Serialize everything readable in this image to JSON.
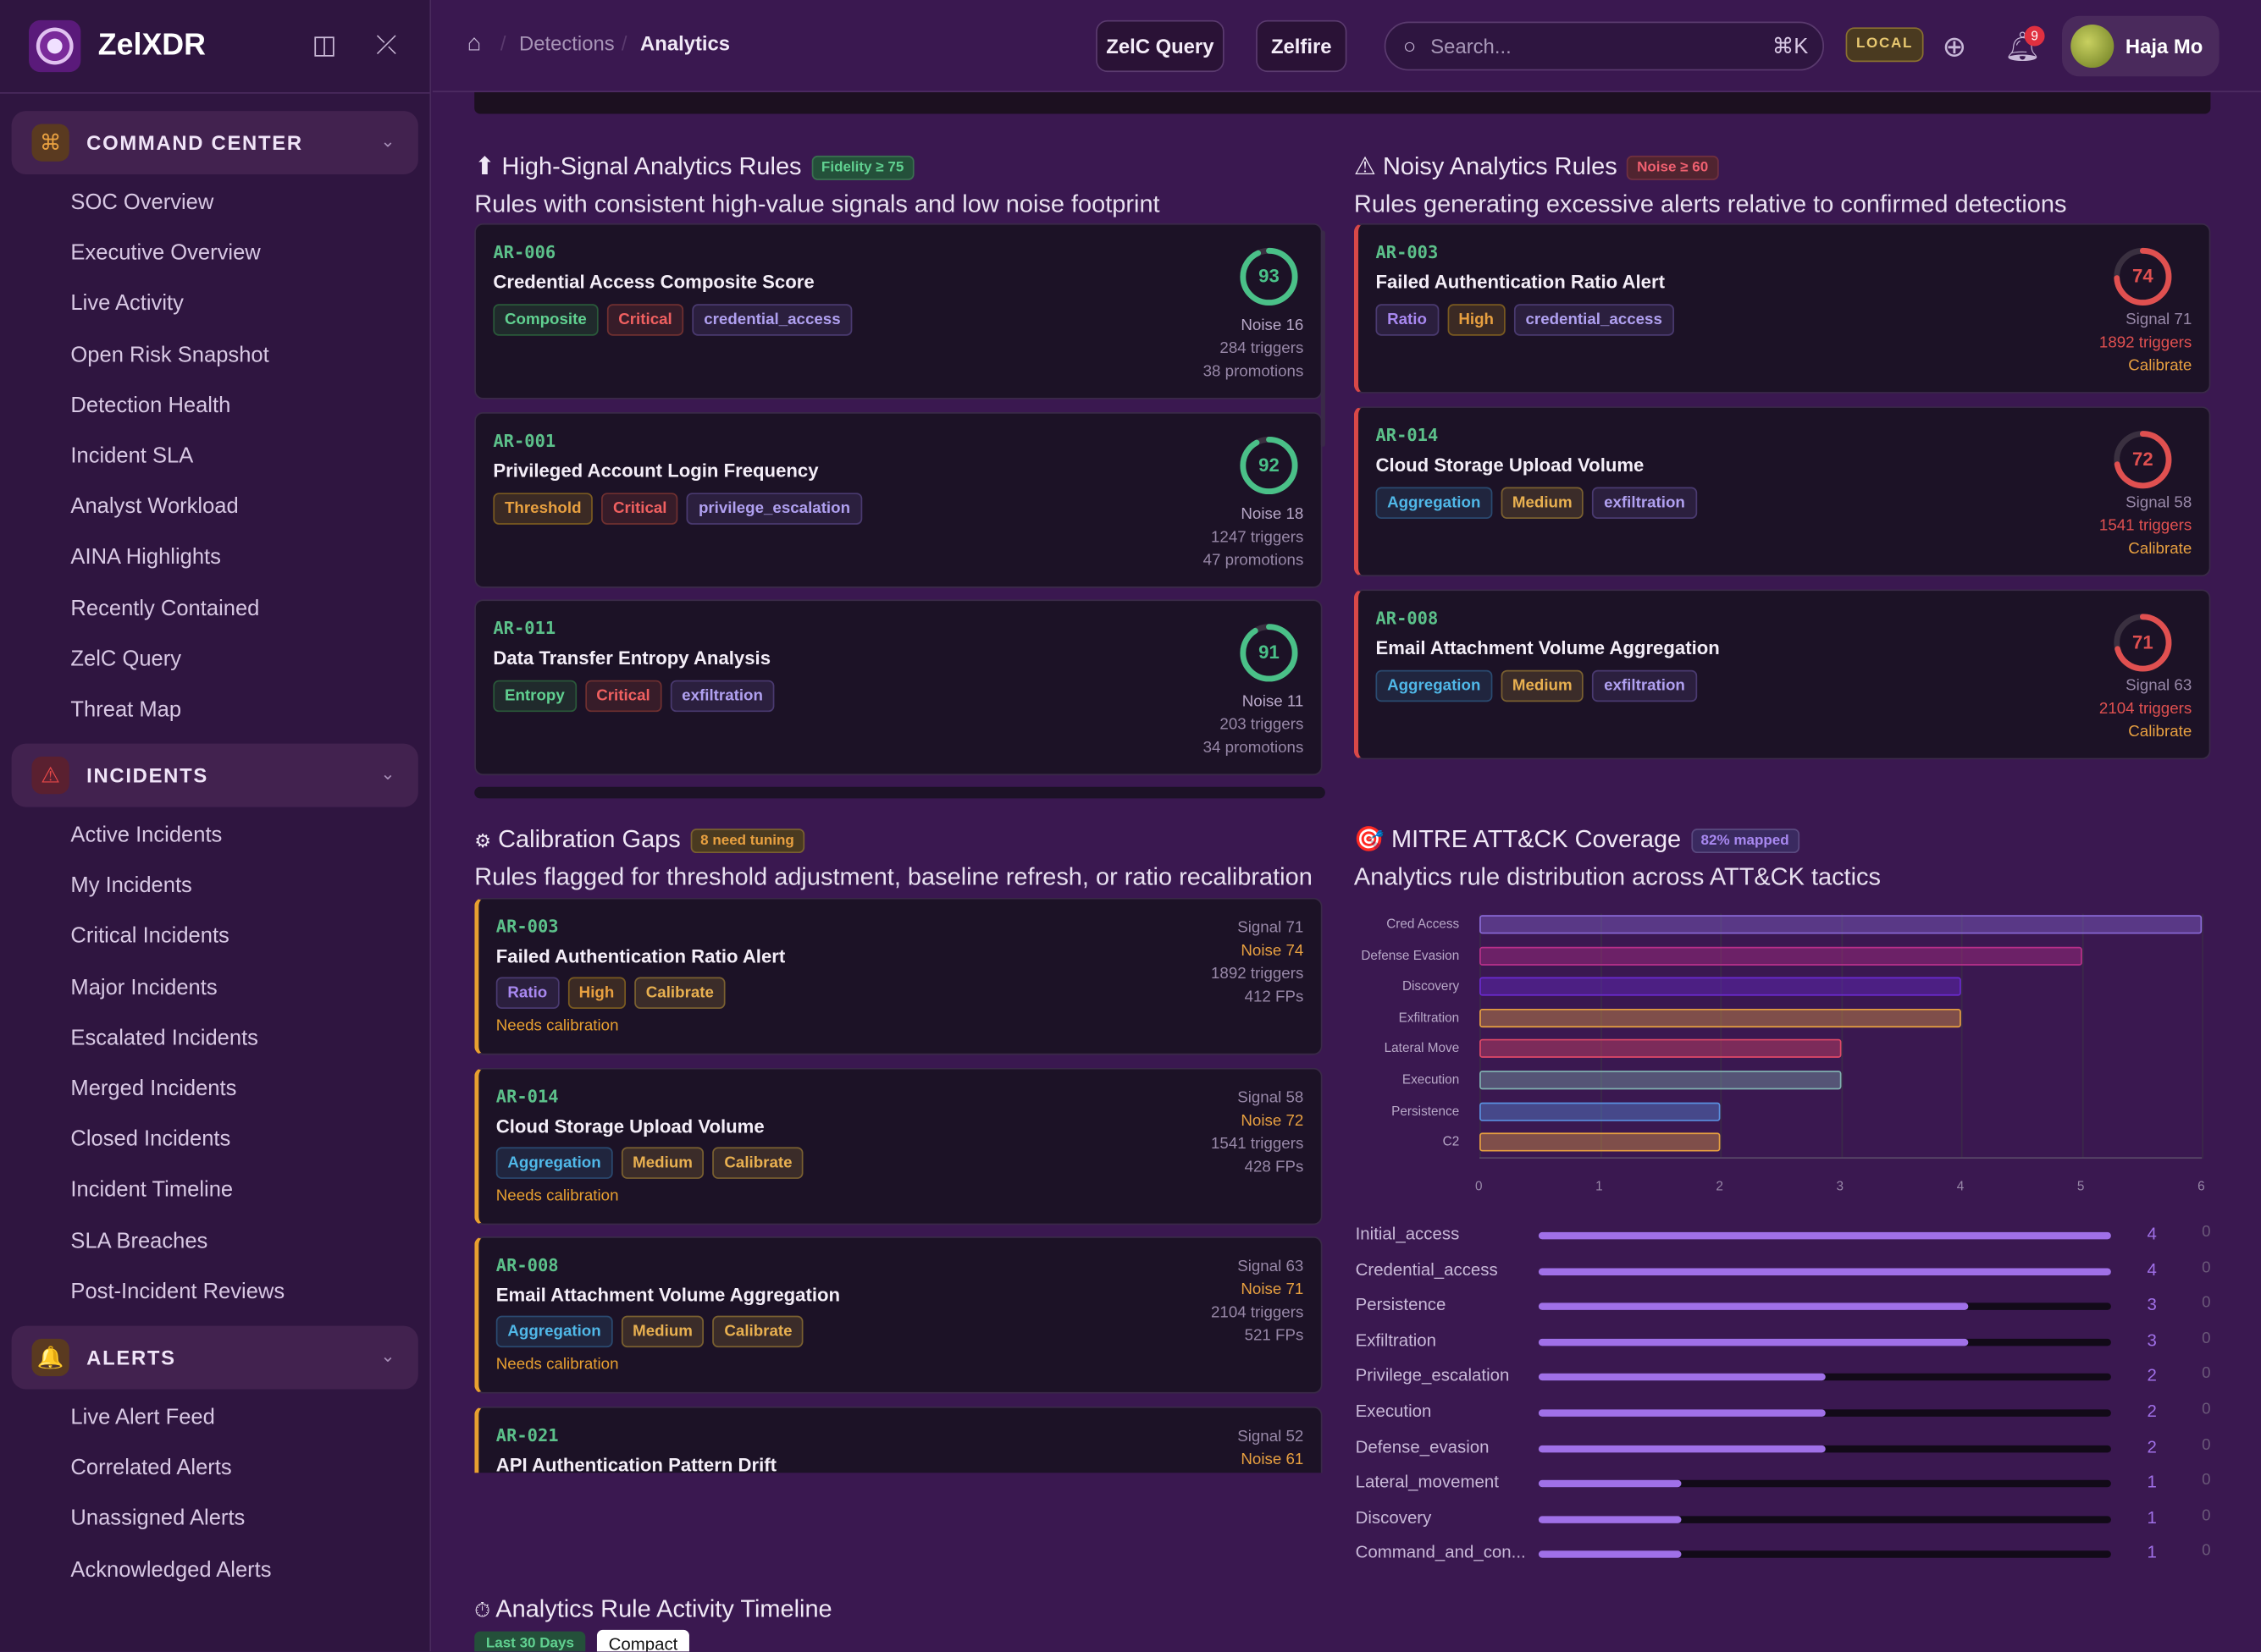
{
  "app": {
    "name": "ZelXDR"
  },
  "sidebar": {
    "command_center": {
      "label": "COMMAND CENTER",
      "items": [
        "SOC Overview",
        "Executive Overview",
        "Live Activity",
        "Open Risk Snapshot",
        "Detection Health",
        "Incident SLA",
        "Analyst Workload",
        "AINA Highlights",
        "Recently Contained",
        "ZelC Query",
        "Threat Map"
      ]
    },
    "incidents": {
      "label": "INCIDENTS",
      "items": [
        "Active Incidents",
        "My Incidents",
        "Critical Incidents",
        "Major Incidents",
        "Escalated Incidents",
        "Merged Incidents",
        "Closed Incidents",
        "Incident Timeline",
        "SLA Breaches",
        "Post-Incident Reviews"
      ]
    },
    "alerts": {
      "label": "ALERTS",
      "items": [
        "Live Alert Feed",
        "Correlated Alerts",
        "Unassigned Alerts",
        "Acknowledged Alerts"
      ]
    }
  },
  "header": {
    "breadcrumb": [
      "Detections",
      "Analytics"
    ],
    "btn_query": "ZelC Query",
    "btn_zelfire": "Zelfire",
    "search_placeholder": "Search...",
    "search_kbd": "⌘K",
    "env": "LOCAL",
    "notif_count": "9",
    "user": "Haja Mo"
  },
  "high_signal": {
    "title": "High-Signal Analytics Rules",
    "badge": "Fidelity ≥ 75",
    "subtitle": "Rules with consistent high-value signals and low noise footprint",
    "rules": [
      {
        "id": "AR-006",
        "name": "Credential Access Composite Score",
        "tags": [
          "Composite",
          "Critical",
          "credential_access"
        ],
        "score": "93",
        "score_frac": 0.93,
        "noise": "Noise 16",
        "triggers": "284 triggers",
        "promotions": "38 promotions"
      },
      {
        "id": "AR-001",
        "name": "Privileged Account Login Frequency",
        "tags": [
          "Threshold",
          "Critical",
          "privilege_escalation"
        ],
        "score": "92",
        "score_frac": 0.92,
        "noise": "Noise 18",
        "triggers": "1247 triggers",
        "promotions": "47 promotions"
      },
      {
        "id": "AR-011",
        "name": "Data Transfer Entropy Analysis",
        "tags": [
          "Entropy",
          "Critical",
          "exfiltration"
        ],
        "score": "91",
        "score_frac": 0.91,
        "noise": "Noise 11",
        "triggers": "203 triggers",
        "promotions": "34 promotions"
      }
    ]
  },
  "noisy": {
    "title": "Noisy Analytics Rules",
    "badge": "Noise ≥ 60",
    "subtitle": "Rules generating excessive alerts relative to confirmed detections",
    "rules": [
      {
        "id": "AR-003",
        "name": "Failed Authentication Ratio Alert",
        "tags": [
          "Ratio",
          "High",
          "credential_access"
        ],
        "score": "74",
        "score_frac": 0.74,
        "signal": "Signal 71",
        "triggers": "1892 triggers",
        "action": "Calibrate"
      },
      {
        "id": "AR-014",
        "name": "Cloud Storage Upload Volume",
        "tags": [
          "Aggregation",
          "Medium",
          "exfiltration"
        ],
        "score": "72",
        "score_frac": 0.72,
        "signal": "Signal 58",
        "triggers": "1541 triggers",
        "action": "Calibrate"
      },
      {
        "id": "AR-008",
        "name": "Email Attachment Volume Aggregation",
        "tags": [
          "Aggregation",
          "Medium",
          "exfiltration"
        ],
        "score": "71",
        "score_frac": 0.71,
        "signal": "Signal 63",
        "triggers": "2104 triggers",
        "action": "Calibrate"
      }
    ]
  },
  "calibration": {
    "title": "Calibration Gaps",
    "badge": "8 need tuning",
    "subtitle": "Rules flagged for threshold adjustment, baseline refresh, or ratio recalibration",
    "rules": [
      {
        "id": "AR-003",
        "name": "Failed Authentication Ratio Alert",
        "tags": [
          "Ratio",
          "High",
          "Calibrate"
        ],
        "signal": "Signal 71",
        "noise": "Noise 74",
        "triggers": "1892 triggers",
        "fps": "412 FPs",
        "note": "Needs calibration"
      },
      {
        "id": "AR-014",
        "name": "Cloud Storage Upload Volume",
        "tags": [
          "Aggregation",
          "Medium",
          "Calibrate"
        ],
        "signal": "Signal 58",
        "noise": "Noise 72",
        "triggers": "1541 triggers",
        "fps": "428 FPs",
        "note": "Needs calibration"
      },
      {
        "id": "AR-008",
        "name": "Email Attachment Volume Aggregation",
        "tags": [
          "Aggregation",
          "Medium",
          "Calibrate"
        ],
        "signal": "Signal 63",
        "noise": "Noise 71",
        "triggers": "2104 triggers",
        "fps": "521 FPs",
        "note": "Needs calibration"
      },
      {
        "id": "AR-021",
        "name": "API Authentication Pattern Drift",
        "tags": [],
        "signal": "Signal 52",
        "noise": "Noise 61"
      }
    ]
  },
  "mitre": {
    "title": "MITRE ATT&CK Coverage",
    "badge": "82% mapped",
    "subtitle": "Analytics rule distribution across ATT&CK tactics",
    "tactics": [
      {
        "name": "Initial_access",
        "count": "4",
        "zero": "0",
        "frac": 1.0
      },
      {
        "name": "Credential_access",
        "count": "4",
        "zero": "0",
        "frac": 1.0
      },
      {
        "name": "Persistence",
        "count": "3",
        "zero": "0",
        "frac": 0.75
      },
      {
        "name": "Exfiltration",
        "count": "3",
        "zero": "0",
        "frac": 0.75
      },
      {
        "name": "Privilege_escalation",
        "count": "2",
        "zero": "0",
        "frac": 0.5
      },
      {
        "name": "Execution",
        "count": "2",
        "zero": "0",
        "frac": 0.5
      },
      {
        "name": "Defense_evasion",
        "count": "2",
        "zero": "0",
        "frac": 0.5
      },
      {
        "name": "Lateral_movement",
        "count": "1",
        "zero": "0",
        "frac": 0.25
      },
      {
        "name": "Discovery",
        "count": "1",
        "zero": "0",
        "frac": 0.25
      },
      {
        "name": "Command_and_con...",
        "count": "1",
        "zero": "0",
        "frac": 0.25
      }
    ]
  },
  "chart_data": {
    "type": "bar",
    "orientation": "horizontal",
    "categories": [
      "Cred Access",
      "Defense Evasion",
      "Discovery",
      "Exfiltration",
      "Lateral Move",
      "Execution",
      "Persistence",
      "C2"
    ],
    "values": [
      6,
      5,
      4,
      4,
      3,
      3,
      2,
      2
    ],
    "colors": [
      "#8a6ad8",
      "#b8308a",
      "#6a2ad0",
      "#e8a040",
      "#e04868",
      "#80b0b0",
      "#5a90e0",
      "#e8a040"
    ],
    "xlim": [
      0,
      6
    ],
    "xticks": [
      "0",
      "1",
      "2",
      "3",
      "4",
      "5",
      "6"
    ]
  },
  "timeline": {
    "title": "Analytics Rule Activity Timeline",
    "filter": "Last 30 Days",
    "mode": "Compact"
  }
}
